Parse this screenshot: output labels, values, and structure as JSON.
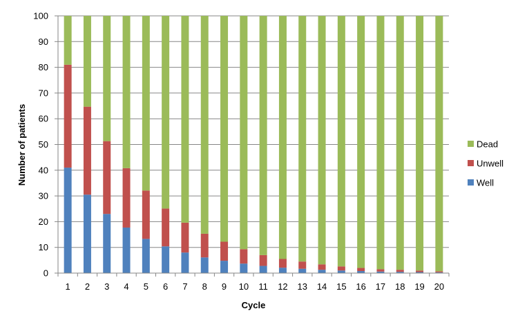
{
  "chart_data": {
    "type": "bar",
    "stacked": true,
    "title": "",
    "xlabel": "Cycle",
    "ylabel": "Number of patients",
    "ylim": [
      0,
      100
    ],
    "yticks": [
      0,
      10,
      20,
      30,
      40,
      50,
      60,
      70,
      80,
      90,
      100
    ],
    "grid": true,
    "legend_position": "right",
    "categories": [
      "1",
      "2",
      "3",
      "4",
      "5",
      "6",
      "7",
      "8",
      "9",
      "10",
      "11",
      "12",
      "13",
      "14",
      "15",
      "16",
      "17",
      "18",
      "19",
      "20"
    ],
    "series": [
      {
        "name": "Well",
        "color": "#4f81bd",
        "values": [
          41.0,
          30.5,
          23.0,
          17.7,
          13.3,
          10.4,
          8.0,
          6.1,
          4.8,
          3.7,
          2.8,
          2.1,
          1.7,
          1.3,
          1.0,
          0.8,
          0.6,
          0.5,
          0.4,
          0.3
        ]
      },
      {
        "name": "Unwell",
        "color": "#c0504d",
        "values": [
          40.0,
          34.2,
          28.3,
          23.1,
          18.8,
          14.7,
          11.6,
          9.2,
          7.4,
          5.6,
          4.2,
          3.4,
          2.8,
          2.1,
          1.6,
          1.2,
          0.9,
          0.8,
          0.6,
          0.4
        ]
      },
      {
        "name": "Dead",
        "color": "#9bbb59",
        "values": [
          19.0,
          35.3,
          48.7,
          59.2,
          67.9,
          74.9,
          80.4,
          84.7,
          87.8,
          90.7,
          93.0,
          94.5,
          95.5,
          96.6,
          97.4,
          98.0,
          98.5,
          98.7,
          99.0,
          99.3
        ]
      }
    ]
  }
}
